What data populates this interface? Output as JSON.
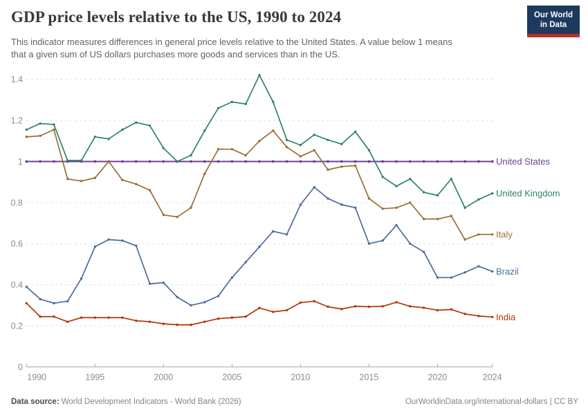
{
  "header": {
    "title": "GDP price levels relative to the US, 1990 to 2024",
    "subtitle_lines": [
      "This indicator measures differences in general price levels relative to the United States. A value below 1 means",
      "that a given sum of US dollars purchases more goods and services than in the US."
    ],
    "logo": {
      "line1": "Our World",
      "line2": "in Data",
      "bg_color": "#1c3a5e",
      "bar_color": "#bb3025"
    }
  },
  "footer": {
    "source_label": "Data source:",
    "source_text": " World Development Indicators - World Bank (2026)",
    "link_text": "OurWorldinData.org/international-dollars | CC BY"
  },
  "chart_data": {
    "type": "line",
    "title": "GDP price levels relative to the US, 1990 to 2024",
    "xlabel": "",
    "ylabel": "",
    "xlim": [
      1990,
      2024
    ],
    "ylim": [
      0,
      1.4
    ],
    "xticks": [
      1990,
      1995,
      2000,
      2005,
      2010,
      2015,
      2020,
      2024
    ],
    "yticks": [
      0,
      0.2,
      0.4,
      0.6,
      0.8,
      1,
      1.2,
      1.4
    ],
    "grid": "horizontal-dashed",
    "legend_position": "end-of-line-labels",
    "marker": "dot-every-year",
    "x": [
      1990,
      1991,
      1992,
      1993,
      1994,
      1995,
      1996,
      1997,
      1998,
      1999,
      2000,
      2001,
      2002,
      2003,
      2004,
      2005,
      2006,
      2007,
      2008,
      2009,
      2010,
      2011,
      2012,
      2013,
      2014,
      2015,
      2016,
      2017,
      2018,
      2019,
      2020,
      2021,
      2022,
      2023,
      2024
    ],
    "series": [
      {
        "name": "United States",
        "color": "#6D3E91",
        "values": [
          1,
          1,
          1,
          1,
          1,
          1,
          1,
          1,
          1,
          1,
          1,
          1,
          1,
          1,
          1,
          1,
          1,
          1,
          1,
          1,
          1,
          1,
          1,
          1,
          1,
          1,
          1,
          1,
          1,
          1,
          1,
          1,
          1,
          1,
          1
        ]
      },
      {
        "name": "United Kingdom",
        "color": "#2C8465",
        "values": [
          1.155,
          1.185,
          1.18,
          1.005,
          1.005,
          1.12,
          1.11,
          1.155,
          1.19,
          1.175,
          1.065,
          1.0,
          1.03,
          1.15,
          1.26,
          1.29,
          1.28,
          1.42,
          1.29,
          1.105,
          1.08,
          1.13,
          1.105,
          1.085,
          1.145,
          1.055,
          0.925,
          0.88,
          0.915,
          0.85,
          0.835,
          0.915,
          0.775,
          0.815,
          0.845
        ]
      },
      {
        "name": "Italy",
        "color": "#996D39",
        "values": [
          1.12,
          1.125,
          1.155,
          0.915,
          0.905,
          0.92,
          1.0,
          0.91,
          0.89,
          0.86,
          0.74,
          0.73,
          0.775,
          0.94,
          1.06,
          1.06,
          1.03,
          1.1,
          1.15,
          1.07,
          1.025,
          1.055,
          0.96,
          0.975,
          0.98,
          0.82,
          0.77,
          0.775,
          0.8,
          0.72,
          0.72,
          0.735,
          0.62,
          0.645,
          0.645
        ]
      },
      {
        "name": "Brazil",
        "color": "#4C6A9C",
        "values": [
          0.39,
          0.33,
          0.31,
          0.32,
          0.43,
          0.585,
          0.62,
          0.615,
          0.59,
          0.405,
          0.41,
          0.34,
          0.3,
          0.315,
          0.345,
          0.435,
          0.51,
          0.585,
          0.66,
          0.645,
          0.79,
          0.875,
          0.82,
          0.79,
          0.775,
          0.6,
          0.615,
          0.69,
          0.6,
          0.56,
          0.435,
          0.435,
          0.46,
          0.49,
          0.465
        ]
      },
      {
        "name": "India",
        "color": "#B13507",
        "values": [
          0.31,
          0.245,
          0.245,
          0.22,
          0.24,
          0.24,
          0.24,
          0.24,
          0.225,
          0.22,
          0.21,
          0.205,
          0.205,
          0.22,
          0.235,
          0.24,
          0.245,
          0.287,
          0.268,
          0.276,
          0.313,
          0.32,
          0.293,
          0.282,
          0.295,
          0.293,
          0.295,
          0.315,
          0.295,
          0.288,
          0.276,
          0.28,
          0.258,
          0.248,
          0.243
        ]
      }
    ]
  }
}
